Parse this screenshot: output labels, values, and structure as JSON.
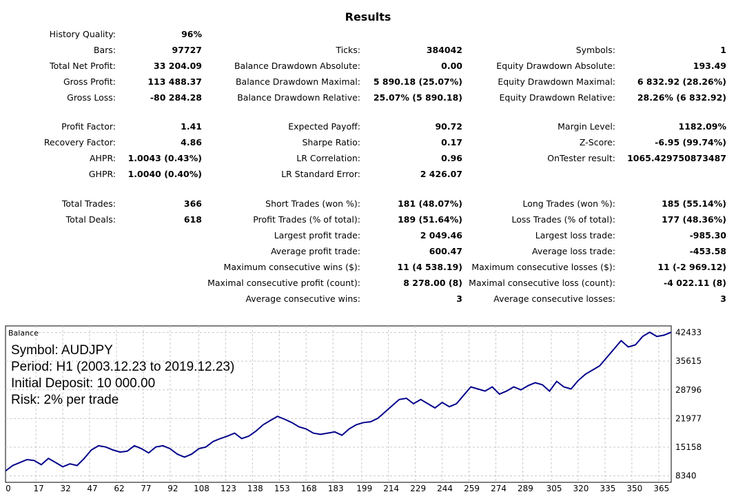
{
  "title": "Results",
  "stats": {
    "col1": [
      [
        {
          "label": "History Quality:",
          "value": "96%"
        }
      ],
      [
        {
          "label": "Bars:",
          "value": "97727"
        },
        {
          "label": "Ticks:",
          "value": "384042"
        },
        {
          "label": "Symbols:",
          "value": "1"
        }
      ],
      [
        {
          "label": "Total Net Profit:",
          "value": "33 204.09"
        },
        {
          "label": "Balance Drawdown Absolute:",
          "value": "0.00"
        },
        {
          "label": "Equity Drawdown Absolute:",
          "value": "193.49"
        }
      ],
      [
        {
          "label": "Gross Profit:",
          "value": "113 488.37"
        },
        {
          "label": "Balance Drawdown Maximal:",
          "value": "5 890.18 (25.07%)"
        },
        {
          "label": "Equity Drawdown Maximal:",
          "value": "6 832.92 (28.26%)"
        }
      ],
      [
        {
          "label": "Gross Loss:",
          "value": "-80 284.28"
        },
        {
          "label": "Balance Drawdown Relative:",
          "value": "25.07% (5 890.18)"
        },
        {
          "label": "Equity Drawdown Relative:",
          "value": "28.26% (6 832.92)"
        }
      ]
    ],
    "col2": [
      [
        {
          "label": "Profit Factor:",
          "value": "1.41"
        },
        {
          "label": "Expected Payoff:",
          "value": "90.72"
        },
        {
          "label": "Margin Level:",
          "value": "1182.09%"
        }
      ],
      [
        {
          "label": "Recovery Factor:",
          "value": "4.86"
        },
        {
          "label": "Sharpe Ratio:",
          "value": "0.17"
        },
        {
          "label": "Z-Score:",
          "value": "-6.95 (99.74%)"
        }
      ],
      [
        {
          "label": "AHPR:",
          "value": "1.0043 (0.43%)"
        },
        {
          "label": "LR Correlation:",
          "value": "0.96"
        },
        {
          "label": "OnTester result:",
          "value": "1065.429750873487"
        }
      ],
      [
        {
          "label": "GHPR:",
          "value": "1.0040 (0.40%)"
        },
        {
          "label": "LR Standard Error:",
          "value": "2 426.07"
        }
      ]
    ],
    "col3": [
      [
        {
          "label": "Total Trades:",
          "value": "366"
        },
        {
          "label": "Short Trades (won %):",
          "value": "181 (48.07%)"
        },
        {
          "label": "Long Trades (won %):",
          "value": "185 (55.14%)"
        }
      ],
      [
        {
          "label": "Total Deals:",
          "value": "618"
        },
        {
          "label": "Profit Trades (% of total):",
          "value": "189 (51.64%)"
        },
        {
          "label": "Loss Trades (% of total):",
          "value": "177 (48.36%)"
        }
      ],
      [
        null,
        {
          "label": "Largest profit trade:",
          "value": "2 049.46"
        },
        {
          "label": "Largest loss trade:",
          "value": "-985.30"
        }
      ],
      [
        null,
        {
          "label": "Average profit trade:",
          "value": "600.47"
        },
        {
          "label": "Average loss trade:",
          "value": "-453.58"
        }
      ],
      [
        null,
        {
          "label": "Maximum consecutive wins ($):",
          "value": "11 (4 538.19)"
        },
        {
          "label": "Maximum consecutive losses ($):",
          "value": "11 (-2 969.12)"
        }
      ],
      [
        null,
        {
          "label": "Maximal consecutive profit (count):",
          "value": "8 278.00 (8)"
        },
        {
          "label": "Maximal consecutive loss (count):",
          "value": "-4 022.11 (8)"
        }
      ],
      [
        null,
        {
          "label": "Average consecutive wins:",
          "value": "3"
        },
        {
          "label": "Average consecutive losses:",
          "value": "3"
        }
      ]
    ]
  },
  "chart_data": {
    "type": "line",
    "title": "Balance",
    "info_lines": [
      "Symbol: AUDJPY",
      "Period: H1 (2003.12.23 to 2019.12.23)",
      "Initial Deposit: 10 000.00",
      "Risk: 2% per trade"
    ],
    "xlim": [
      0,
      372
    ],
    "ylim": [
      6800,
      44000
    ],
    "x_ticks": [
      0,
      17,
      32,
      47,
      62,
      77,
      92,
      108,
      123,
      138,
      153,
      168,
      183,
      199,
      214,
      229,
      244,
      259,
      274,
      289,
      305,
      320,
      335,
      350,
      365
    ],
    "y_ticks": [
      8340,
      15158,
      21977,
      28796,
      35615,
      42433
    ],
    "grid": true,
    "line_color": "#00008b",
    "series": [
      {
        "x": [
          0,
          4,
          8,
          12,
          16,
          20,
          24,
          28,
          32,
          36,
          40,
          44,
          48,
          52,
          56,
          60,
          64,
          68,
          72,
          76,
          80,
          84,
          88,
          92,
          96,
          100,
          104,
          108,
          112,
          116,
          120,
          124,
          128,
          132,
          136,
          140,
          144,
          148,
          152,
          156,
          160,
          164,
          168,
          172,
          176,
          180,
          184,
          188,
          192,
          196,
          200,
          204,
          208,
          212,
          216,
          220,
          224,
          228,
          232,
          236,
          240,
          244,
          248,
          252,
          256,
          260,
          264,
          268,
          272,
          276,
          280,
          284,
          288,
          292,
          296,
          300,
          304,
          308,
          312,
          316,
          320,
          324,
          328,
          332,
          336,
          340,
          344,
          348,
          352,
          356,
          360,
          364,
          368,
          372
        ],
        "y": [
          9500,
          10800,
          11500,
          12200,
          12000,
          11000,
          12500,
          11500,
          10500,
          11200,
          10800,
          12500,
          14500,
          15500,
          15200,
          14500,
          14000,
          14200,
          15500,
          14800,
          13800,
          15200,
          15500,
          14800,
          13500,
          12800,
          13500,
          14800,
          15200,
          16500,
          17200,
          17800,
          18500,
          17200,
          17800,
          19000,
          20500,
          21500,
          22500,
          21800,
          21000,
          20000,
          19500,
          18500,
          18200,
          18500,
          18800,
          18000,
          19500,
          20500,
          21000,
          21200,
          22000,
          23500,
          25000,
          26500,
          26800,
          25500,
          26500,
          25500,
          24500,
          25800,
          24800,
          25500,
          27500,
          29500,
          29000,
          28500,
          29500,
          27800,
          28500,
          29500,
          28800,
          29800,
          30500,
          30000,
          28500,
          30800,
          29500,
          29000,
          31000,
          32500,
          33500,
          34500,
          36500,
          38500,
          40500,
          39000,
          39500,
          41500,
          42500,
          41500,
          41800,
          42500
        ]
      }
    ]
  }
}
